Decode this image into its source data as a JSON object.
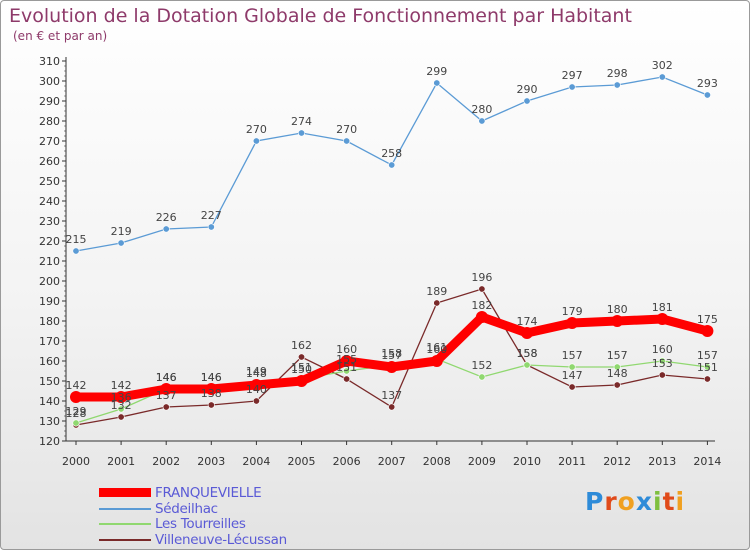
{
  "title": "Evolution de la Dotation Globale de Fonctionnement par Habitant",
  "subtitle": "(en € et par an)",
  "logo": {
    "text": "Proxiti",
    "letter_colors": [
      "#2e8bd8",
      "#e04a1a",
      "#f0a020",
      "#2e8bd8",
      "#7fbf3f",
      "#e04a1a",
      "#f0a020"
    ]
  },
  "chart_data": {
    "type": "line",
    "categories": [
      "2000",
      "2001",
      "2002",
      "2003",
      "2004",
      "2005",
      "2006",
      "2007",
      "2008",
      "2009",
      "2010",
      "2011",
      "2012",
      "2013",
      "2014"
    ],
    "ylim": [
      120,
      310
    ],
    "yticks": [
      120,
      130,
      140,
      150,
      160,
      170,
      180,
      190,
      200,
      210,
      220,
      230,
      240,
      250,
      260,
      270,
      280,
      290,
      300,
      310
    ],
    "grid": false,
    "legend_position": "bottom-left",
    "series": [
      {
        "name": "FRANQUEVIELLE",
        "color": "#ff0000",
        "values": [
          142,
          142,
          146,
          146,
          148,
          150,
          160,
          157,
          160,
          182,
          174,
          179,
          180,
          181,
          175
        ]
      },
      {
        "name": "Sédeilhac",
        "color": "#5b9bd5",
        "values": [
          215,
          219,
          226,
          227,
          270,
          274,
          270,
          258,
          299,
          280,
          290,
          297,
          298,
          302,
          293
        ]
      },
      {
        "name": "Les Tourreilles",
        "color": "#90d870",
        "values": [
          129,
          136,
          146,
          146,
          149,
          151,
          155,
          158,
          161,
          152,
          158,
          157,
          157,
          160,
          157
        ]
      },
      {
        "name": "Villeneuve-Lécussan",
        "color": "#7a2a2a",
        "values": [
          128,
          132,
          137,
          138,
          140,
          162,
          151,
          137,
          189,
          196,
          158,
          147,
          148,
          153,
          151
        ]
      }
    ]
  }
}
